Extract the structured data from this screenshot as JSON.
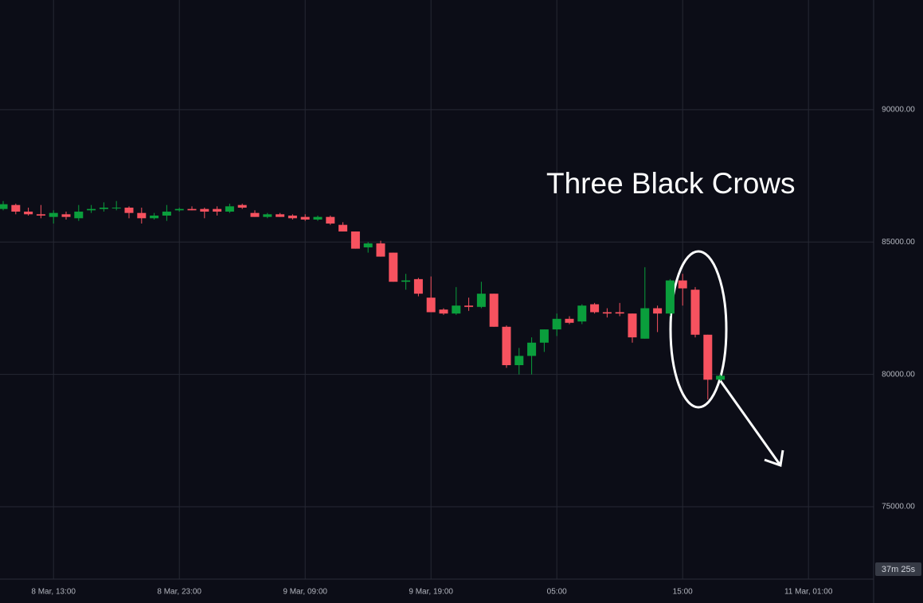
{
  "chart_data": {
    "type": "candlestick",
    "annotation": "Three Black Crows",
    "countdown": "37m 25s",
    "categories": [
      null,
      null,
      null,
      null,
      "8 Mar, 13:00",
      null,
      null,
      null,
      null,
      null,
      null,
      null,
      null,
      null,
      "8 Mar, 23:00",
      null,
      null,
      null,
      null,
      null,
      null,
      null,
      null,
      null,
      "9 Mar, 09:00",
      null,
      null,
      null,
      null,
      null,
      null,
      null,
      null,
      null,
      "9 Mar, 19:00",
      null,
      null,
      null,
      null,
      null,
      null,
      null,
      null,
      null,
      "05:00",
      null,
      null,
      null,
      null,
      null,
      null,
      null,
      null,
      null,
      "15:00",
      null,
      null,
      null,
      null,
      null,
      null,
      null,
      null,
      null,
      "11 Mar, 01:00",
      null,
      null,
      null,
      null
    ],
    "open": [
      86250,
      86400,
      86150,
      86050,
      85950,
      86050,
      85900,
      86200,
      86250,
      86300,
      86300,
      86100,
      85900,
      86000,
      86200,
      86250,
      86250,
      86250,
      86150,
      86400,
      86100,
      85950,
      86050,
      86000,
      85950,
      85850,
      85950,
      85650,
      85400,
      84800,
      84950,
      84600,
      83500,
      83600,
      82900,
      82450,
      82300,
      82600,
      82550,
      83050,
      81800,
      80350,
      80700,
      81200,
      81700,
      82100,
      82000,
      82650,
      82350,
      82350,
      82300,
      81350,
      82500,
      82300,
      83550,
      83200,
      81500,
      79800,
      null,
      null,
      null,
      null,
      null,
      null,
      null,
      null,
      null,
      null,
      null
    ],
    "high": [
      86550,
      86450,
      86300,
      86400,
      86200,
      86150,
      86400,
      86400,
      86500,
      86550,
      86350,
      86300,
      86100,
      86400,
      86300,
      86350,
      86300,
      86350,
      86450,
      86450,
      86200,
      86100,
      86100,
      86050,
      86050,
      86000,
      86000,
      85750,
      85400,
      85000,
      85050,
      84600,
      83800,
      83650,
      83700,
      82500,
      83300,
      82900,
      83500,
      83050,
      81850,
      81000,
      81400,
      81700,
      82300,
      82200,
      82650,
      82700,
      82500,
      82700,
      82300,
      84050,
      82600,
      83600,
      83800,
      83300,
      81500,
      80000,
      null,
      null,
      null,
      null,
      null,
      null,
      null,
      null,
      null,
      null,
      null
    ],
    "low": [
      86200,
      86050,
      86000,
      85900,
      85700,
      85850,
      85800,
      86100,
      86150,
      86200,
      85900,
      85700,
      85850,
      85800,
      86150,
      86200,
      85900,
      86000,
      86100,
      86250,
      85950,
      85900,
      85950,
      85850,
      85800,
      85800,
      85650,
      85400,
      84750,
      84600,
      84450,
      83500,
      83200,
      82950,
      82350,
      82250,
      82250,
      82400,
      82500,
      81800,
      80250,
      80000,
      80000,
      80850,
      81450,
      81900,
      81900,
      82300,
      82150,
      82200,
      81200,
      81350,
      81600,
      82200,
      82600,
      81400,
      79050,
      79750,
      null,
      null,
      null,
      null,
      null,
      null,
      null,
      null,
      null,
      null,
      null
    ],
    "close": [
      86430,
      86150,
      86050,
      86000,
      86100,
      85950,
      86150,
      86250,
      86300,
      86300,
      86100,
      85900,
      86000,
      86150,
      86250,
      86200,
      86150,
      86150,
      86350,
      86300,
      85950,
      86050,
      85950,
      85900,
      85850,
      85950,
      85700,
      85400,
      84750,
      84950,
      84450,
      83500,
      83550,
      83050,
      82350,
      82300,
      82600,
      82550,
      83050,
      81800,
      80350,
      80700,
      81200,
      81700,
      82100,
      81950,
      82600,
      82350,
      82300,
      82300,
      81400,
      82500,
      82300,
      83550,
      83250,
      81500,
      79800,
      79950,
      null,
      null,
      null,
      null,
      null,
      null,
      null,
      null,
      null,
      null,
      null
    ],
    "up_color": "#0a9e3c",
    "down_color": "#f7525f",
    "ylim": [
      72267,
      94144
    ],
    "yticks": [
      {
        "value": 75000,
        "label": "75000.00"
      },
      {
        "value": 80000,
        "label": "80000.00"
      },
      {
        "value": 85000,
        "label": "85000.00"
      },
      {
        "value": 90000,
        "label": "90000.00"
      }
    ],
    "grid": true
  }
}
